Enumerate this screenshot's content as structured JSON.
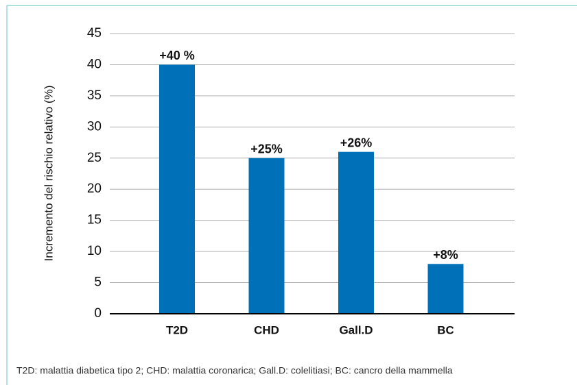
{
  "chart_data": {
    "type": "bar",
    "y_label": "Incremento del rischio relativo (%)",
    "categories": [
      "T2D",
      "CHD",
      "Gall.D",
      "BC"
    ],
    "values": [
      40,
      25,
      26,
      8
    ],
    "value_labels": [
      "+40 %",
      "+25%",
      "+26%",
      "+8%"
    ],
    "color": "#0070b8",
    "ylim": [
      0,
      45
    ],
    "yticks": [
      0,
      5,
      10,
      15,
      20,
      25,
      30,
      35,
      40,
      45
    ],
    "grid": true,
    "caption": "T2D: malattia diabetica tipo 2; CHD: malattia coronarica; Gall.D: colelitiasi; BC: cancro della mammella"
  }
}
